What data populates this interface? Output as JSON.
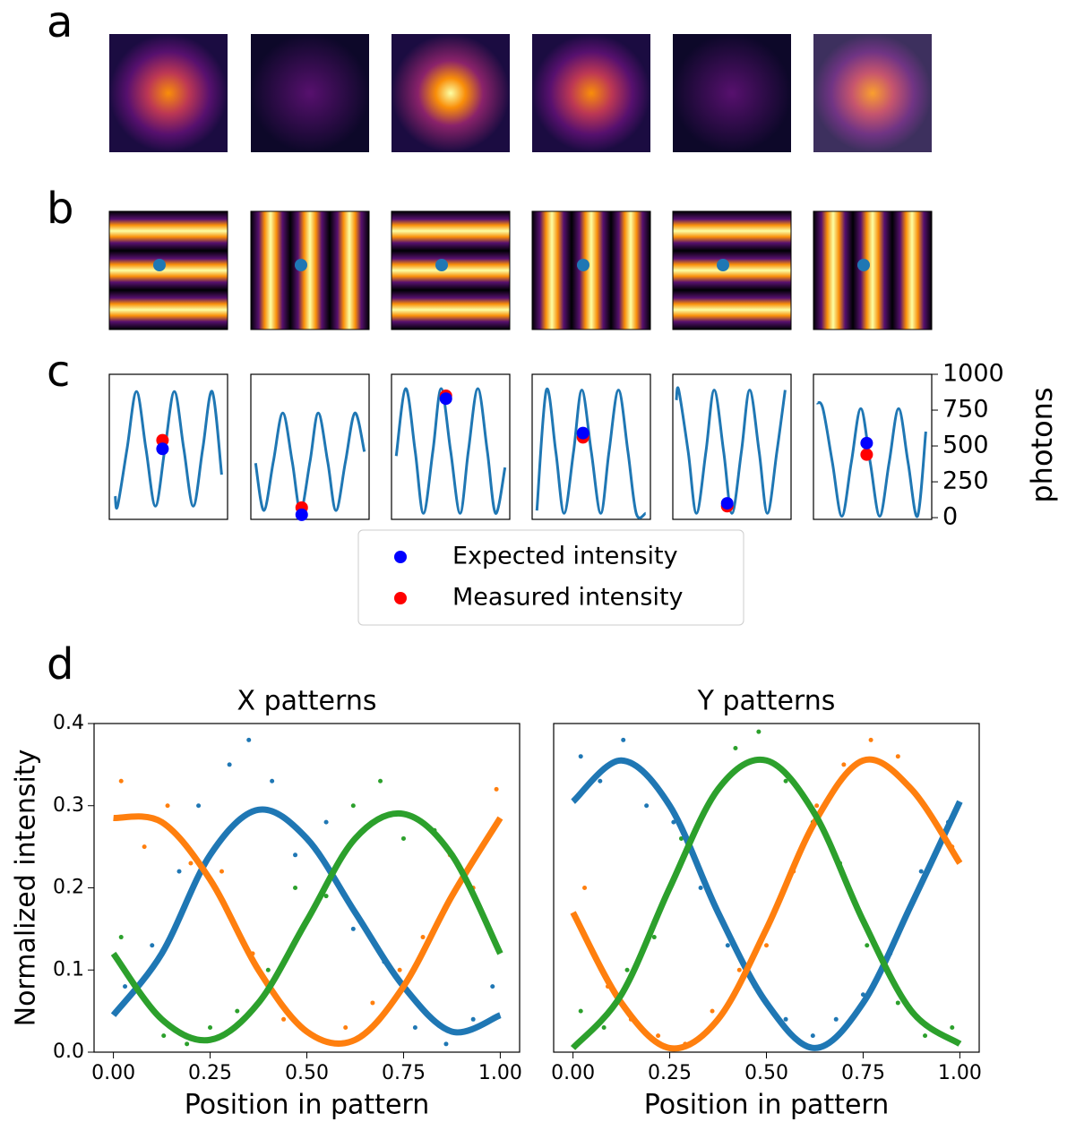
{
  "panel_labels": [
    "a",
    "b",
    "c",
    "d"
  ],
  "chart_data": [
    {
      "type": "sine-panel",
      "xlim": [
        0,
        1
      ],
      "ylim": [
        -12,
        1000
      ],
      "curve": {
        "color": "#1f77b4",
        "x": [
          0.05,
          0.07,
          0.15,
          0.23,
          0.31,
          0.39,
          0.47,
          0.55,
          0.63,
          0.71,
          0.79,
          0.87,
          0.95
        ],
        "values": [
          150,
          80,
          480,
          880,
          480,
          80,
          480,
          880,
          480,
          80,
          480,
          880,
          300
        ]
      },
      "series": [
        {
          "name": "Expected intensity",
          "color": "#0000ff",
          "x": [
            0.45
          ],
          "values": [
            480
          ]
        },
        {
          "name": "Measured intensity",
          "color": "#ff0000",
          "x": [
            0.45
          ],
          "values": [
            540
          ]
        }
      ]
    },
    {
      "type": "sine-panel",
      "xlim": [
        0,
        1
      ],
      "ylim": [
        -12,
        1000
      ],
      "curve": {
        "color": "#1f77b4",
        "x": [
          0.04,
          0.11,
          0.19,
          0.27,
          0.35,
          0.42,
          0.5,
          0.57,
          0.65,
          0.72,
          0.8,
          0.88,
          0.96
        ],
        "values": [
          380,
          50,
          390,
          730,
          390,
          50,
          390,
          730,
          390,
          50,
          390,
          730,
          460
        ]
      },
      "series": [
        {
          "name": "Expected intensity",
          "color": "#0000ff",
          "x": [
            0.43
          ],
          "values": [
            20
          ]
        },
        {
          "name": "Measured intensity",
          "color": "#ff0000",
          "x": [
            0.43
          ],
          "values": [
            70
          ]
        }
      ]
    },
    {
      "type": "sine-panel",
      "xlim": [
        0,
        1
      ],
      "ylim": [
        -12,
        1000
      ],
      "curve": {
        "color": "#1f77b4",
        "x": [
          0.04,
          0.12,
          0.2,
          0.27,
          0.35,
          0.42,
          0.5,
          0.58,
          0.65,
          0.73,
          0.81,
          0.88,
          0.96
        ],
        "values": [
          430,
          900,
          465,
          30,
          465,
          900,
          465,
          30,
          465,
          900,
          465,
          30,
          350
        ]
      },
      "series": [
        {
          "name": "Expected intensity",
          "color": "#0000ff",
          "x": [
            0.46
          ],
          "values": [
            830
          ]
        },
        {
          "name": "Measured intensity",
          "color": "#ff0000",
          "x": [
            0.46
          ],
          "values": [
            850
          ]
        }
      ]
    },
    {
      "type": "sine-panel",
      "xlim": [
        0,
        1
      ],
      "ylim": [
        -12,
        1000
      ],
      "curve": {
        "color": "#1f77b4",
        "x": [
          0.04,
          0.12,
          0.2,
          0.27,
          0.35,
          0.42,
          0.5,
          0.58,
          0.65,
          0.73,
          0.81,
          0.88,
          0.96
        ],
        "values": [
          50,
          890,
          460,
          30,
          460,
          890,
          460,
          30,
          460,
          890,
          460,
          30,
          30
        ]
      },
      "series": [
        {
          "name": "Expected intensity",
          "color": "#0000ff",
          "x": [
            0.43
          ],
          "values": [
            590
          ]
        },
        {
          "name": "Measured intensity",
          "color": "#ff0000",
          "x": [
            0.43
          ],
          "values": [
            560
          ]
        }
      ]
    },
    {
      "type": "sine-panel",
      "xlim": [
        0,
        1
      ],
      "ylim": [
        -12,
        1000
      ],
      "curve": {
        "color": "#1f77b4",
        "x": [
          0.03,
          0.05,
          0.13,
          0.2,
          0.28,
          0.35,
          0.43,
          0.5,
          0.58,
          0.65,
          0.73,
          0.8,
          0.88,
          0.95
        ],
        "values": [
          820,
          890,
          460,
          30,
          460,
          890,
          460,
          30,
          460,
          890,
          460,
          30,
          460,
          890
        ]
      },
      "series": [
        {
          "name": "Expected intensity",
          "color": "#0000ff",
          "x": [
            0.46
          ],
          "values": [
            100
          ]
        },
        {
          "name": "Measured intensity",
          "color": "#ff0000",
          "x": [
            0.46
          ],
          "values": [
            80
          ]
        }
      ]
    },
    {
      "type": "sine-panel",
      "xlim": [
        0,
        1
      ],
      "ylim": [
        -12,
        1000
      ],
      "yticks": [
        0,
        250,
        500,
        750,
        1000
      ],
      "ylabel": "photons",
      "curve": {
        "color": "#1f77b4",
        "x": [
          0.03,
          0.08,
          0.16,
          0.24,
          0.32,
          0.4,
          0.48,
          0.56,
          0.64,
          0.72,
          0.8,
          0.88,
          0.95
        ],
        "values": [
          800,
          760,
          385,
          10,
          385,
          760,
          385,
          10,
          385,
          760,
          385,
          10,
          600
        ]
      },
      "series": [
        {
          "name": "Expected intensity",
          "color": "#0000ff",
          "x": [
            0.45
          ],
          "values": [
            520
          ]
        },
        {
          "name": "Measured intensity",
          "color": "#ff0000",
          "x": [
            0.45
          ],
          "values": [
            440
          ]
        }
      ]
    },
    {
      "type": "scatter-fit",
      "title": "X patterns",
      "xlabel": "Position in pattern",
      "ylabel": "Normalized intensity",
      "xlim": [
        -0.05,
        1.05
      ],
      "ylim": [
        0,
        0.4
      ],
      "xticks": [
        {
          "value": 0,
          "label": "0.00"
        },
        {
          "value": 0.25,
          "label": "0.25"
        },
        {
          "value": 0.5,
          "label": "0.50"
        },
        {
          "value": 0.75,
          "label": "0.75"
        },
        {
          "value": 1,
          "label": "1.00"
        }
      ],
      "yticks": [
        {
          "value": 0,
          "label": "0.0"
        },
        0.1,
        0.2,
        0.3,
        0.4
      ],
      "series": [
        {
          "color": "#1f77b4",
          "x": [
            0.03,
            0.1,
            0.17,
            0.22,
            0.3,
            0.35,
            0.41,
            0.47,
            0.55,
            0.62,
            0.7,
            0.78,
            0.86,
            0.93,
            0.98
          ],
          "values": [
            0.08,
            0.13,
            0.22,
            0.3,
            0.35,
            0.38,
            0.33,
            0.24,
            0.28,
            0.15,
            0.11,
            0.03,
            0.01,
            0.04,
            0.08
          ],
          "fit_x": [
            0,
            0.125,
            0.25,
            0.375,
            0.5,
            0.625,
            0.75,
            0.875,
            1
          ],
          "fit_values": [
            0.045,
            0.12,
            0.24,
            0.295,
            0.26,
            0.17,
            0.08,
            0.025,
            0.045
          ]
        },
        {
          "color": "#ff7f0e",
          "x": [
            0.02,
            0.08,
            0.14,
            0.2,
            0.28,
            0.36,
            0.44,
            0.52,
            0.6,
            0.67,
            0.74,
            0.8,
            0.87,
            0.93,
            0.99
          ],
          "values": [
            0.33,
            0.25,
            0.3,
            0.23,
            0.22,
            0.12,
            0.04,
            0.02,
            0.03,
            0.06,
            0.1,
            0.14,
            0.24,
            0.2,
            0.32
          ],
          "fit_x": [
            0,
            0.125,
            0.25,
            0.375,
            0.5,
            0.625,
            0.75,
            0.875,
            1
          ],
          "fit_values": [
            0.285,
            0.28,
            0.21,
            0.1,
            0.025,
            0.015,
            0.08,
            0.19,
            0.285
          ]
        },
        {
          "color": "#2ca02c",
          "x": [
            0.02,
            0.07,
            0.13,
            0.19,
            0.25,
            0.32,
            0.4,
            0.47,
            0.55,
            0.62,
            0.69,
            0.75,
            0.83,
            0.9,
            0.97
          ],
          "values": [
            0.14,
            0.07,
            0.02,
            0.01,
            0.03,
            0.05,
            0.1,
            0.2,
            0.19,
            0.3,
            0.33,
            0.26,
            0.27,
            0.22,
            0.15
          ],
          "fit_x": [
            0,
            0.125,
            0.25,
            0.375,
            0.5,
            0.625,
            0.75,
            0.875,
            1
          ],
          "fit_values": [
            0.12,
            0.04,
            0.015,
            0.06,
            0.16,
            0.26,
            0.29,
            0.24,
            0.12
          ]
        }
      ]
    },
    {
      "type": "scatter-fit",
      "title": "Y patterns",
      "xlabel": "Position in pattern",
      "xlim": [
        -0.05,
        1.05
      ],
      "ylim": [
        0,
        0.4
      ],
      "xticks": [
        {
          "value": 0,
          "label": "0.00"
        },
        {
          "value": 0.25,
          "label": "0.25"
        },
        {
          "value": 0.5,
          "label": "0.50"
        },
        {
          "value": 0.75,
          "label": "0.75"
        },
        {
          "value": 1,
          "label": "1.00"
        }
      ],
      "series": [
        {
          "color": "#1f77b4",
          "x": [
            0.02,
            0.07,
            0.13,
            0.19,
            0.26,
            0.33,
            0.4,
            0.47,
            0.55,
            0.62,
            0.68,
            0.75,
            0.82,
            0.9,
            0.97
          ],
          "values": [
            0.36,
            0.33,
            0.38,
            0.3,
            0.28,
            0.2,
            0.13,
            0.08,
            0.04,
            0.02,
            0.04,
            0.07,
            0.12,
            0.22,
            0.28
          ],
          "fit_x": [
            0,
            0.125,
            0.25,
            0.375,
            0.5,
            0.625,
            0.75,
            0.875,
            1
          ],
          "fit_values": [
            0.305,
            0.355,
            0.3,
            0.17,
            0.06,
            0.005,
            0.06,
            0.18,
            0.305
          ]
        },
        {
          "color": "#ff7f0e",
          "x": [
            0.03,
            0.09,
            0.15,
            0.22,
            0.29,
            0.36,
            0.43,
            0.5,
            0.57,
            0.63,
            0.7,
            0.77,
            0.84,
            0.91,
            0.98
          ],
          "values": [
            0.2,
            0.08,
            0.04,
            0.02,
            0.01,
            0.05,
            0.1,
            0.13,
            0.22,
            0.3,
            0.35,
            0.38,
            0.36,
            0.3,
            0.25
          ],
          "fit_x": [
            0,
            0.125,
            0.25,
            0.375,
            0.5,
            0.625,
            0.75,
            0.875,
            1
          ],
          "fit_values": [
            0.17,
            0.06,
            0.005,
            0.04,
            0.15,
            0.28,
            0.355,
            0.32,
            0.23
          ]
        },
        {
          "color": "#2ca02c",
          "x": [
            0.02,
            0.08,
            0.14,
            0.21,
            0.28,
            0.35,
            0.42,
            0.48,
            0.55,
            0.62,
            0.69,
            0.76,
            0.84,
            0.91,
            0.98
          ],
          "values": [
            0.05,
            0.03,
            0.1,
            0.14,
            0.26,
            0.3,
            0.37,
            0.39,
            0.33,
            0.28,
            0.23,
            0.13,
            0.06,
            0.02,
            0.03
          ],
          "fit_x": [
            0,
            0.125,
            0.25,
            0.375,
            0.5,
            0.625,
            0.75,
            0.875,
            1
          ],
          "fit_values": [
            0.005,
            0.07,
            0.2,
            0.32,
            0.355,
            0.29,
            0.16,
            0.05,
            0.01
          ]
        }
      ]
    }
  ]
}
